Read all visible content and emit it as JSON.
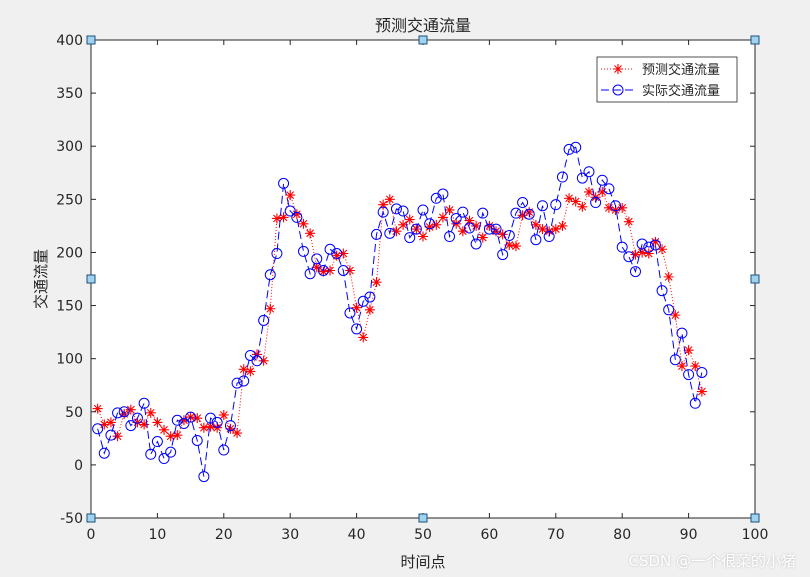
{
  "chart_data": {
    "type": "line",
    "title": "预测交通流量",
    "xlabel": "时间点",
    "ylabel": "交通流量",
    "xlim": [
      0,
      100
    ],
    "ylim": [
      -50,
      400
    ],
    "xticks": [
      "0",
      "10",
      "20",
      "30",
      "40",
      "50",
      "60",
      "70",
      "80",
      "90",
      "100"
    ],
    "yticks": [
      "-50",
      "0",
      "50",
      "100",
      "150",
      "200",
      "250",
      "300",
      "350",
      "400"
    ],
    "grid": false,
    "legend_position": "top-right",
    "series": [
      {
        "name": "预测交通流量",
        "color": "#ff0000",
        "marker": "star",
        "linestyle": "dotted",
        "x": [
          1,
          2,
          3,
          4,
          5,
          6,
          7,
          8,
          9,
          10,
          11,
          12,
          13,
          14,
          15,
          16,
          17,
          18,
          19,
          20,
          21,
          22,
          23,
          24,
          25,
          26,
          27,
          28,
          29,
          30,
          31,
          32,
          33,
          34,
          35,
          36,
          37,
          38,
          39,
          40,
          41,
          42,
          43,
          44,
          45,
          46,
          47,
          48,
          49,
          50,
          51,
          52,
          53,
          54,
          55,
          56,
          57,
          58,
          59,
          60,
          61,
          62,
          63,
          64,
          65,
          66,
          67,
          68,
          69,
          70,
          71,
          72,
          73,
          74,
          75,
          76,
          77,
          78,
          79,
          80,
          81,
          82,
          83,
          84,
          85,
          86,
          87,
          88,
          89,
          90,
          91,
          92
        ],
        "values": [
          53,
          38,
          40,
          27,
          48,
          52,
          40,
          38,
          49,
          40,
          33,
          27,
          28,
          42,
          45,
          44,
          35,
          36,
          35,
          47,
          34,
          30,
          90,
          88,
          104,
          98,
          147,
          232,
          233,
          254,
          236,
          227,
          218,
          186,
          182,
          183,
          197,
          199,
          183,
          148,
          120,
          146,
          172,
          245,
          250,
          220,
          226,
          231,
          222,
          215,
          224,
          226,
          233,
          240,
          227,
          220,
          230,
          225,
          214,
          225,
          220,
          217,
          207,
          206,
          235,
          238,
          226,
          222,
          220,
          222,
          225,
          251,
          248,
          243,
          257,
          252,
          257,
          242,
          240,
          242,
          229,
          198,
          200,
          199,
          210,
          203,
          177,
          141,
          93,
          108,
          93,
          69
        ]
      },
      {
        "name": "实际交通流量",
        "color": "#0000ff",
        "marker": "circle",
        "linestyle": "dashed",
        "x": [
          1,
          2,
          3,
          4,
          5,
          6,
          7,
          8,
          9,
          10,
          11,
          12,
          13,
          14,
          15,
          16,
          17,
          18,
          19,
          20,
          21,
          22,
          23,
          24,
          25,
          26,
          27,
          28,
          29,
          30,
          31,
          32,
          33,
          34,
          35,
          36,
          37,
          38,
          39,
          40,
          41,
          42,
          43,
          44,
          45,
          46,
          47,
          48,
          49,
          50,
          51,
          52,
          53,
          54,
          55,
          56,
          57,
          58,
          59,
          60,
          61,
          62,
          63,
          64,
          65,
          66,
          67,
          68,
          69,
          70,
          71,
          72,
          73,
          74,
          75,
          76,
          77,
          78,
          79,
          80,
          81,
          82,
          83,
          84,
          85,
          86,
          87,
          88,
          89,
          90,
          91,
          92
        ],
        "values": [
          34,
          11,
          28,
          49,
          50,
          37,
          44,
          58,
          10,
          22,
          6,
          12,
          42,
          39,
          45,
          23,
          -11,
          44,
          40,
          14,
          37,
          77,
          79,
          103,
          98,
          136,
          179,
          199,
          265,
          239,
          233,
          201,
          180,
          194,
          183,
          203,
          199,
          183,
          143,
          128,
          154,
          158,
          217,
          238,
          218,
          241,
          239,
          214,
          222,
          240,
          227,
          251,
          255,
          215,
          232,
          238,
          223,
          208,
          237,
          222,
          222,
          198,
          216,
          237,
          247,
          236,
          212,
          244,
          215,
          245,
          271,
          297,
          299,
          270,
          276,
          247,
          268,
          260,
          244,
          205,
          196,
          182,
          208,
          205,
          207,
          164,
          146,
          99,
          124,
          85,
          58,
          87
        ]
      }
    ]
  },
  "watermark": "CSDN @一个很菜的小猪"
}
